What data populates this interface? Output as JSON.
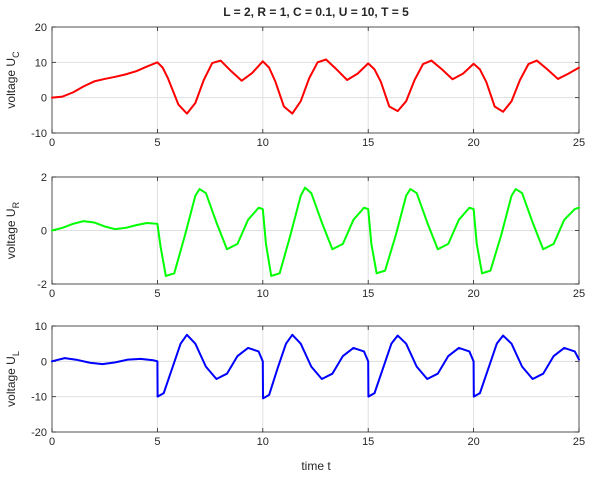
{
  "title": "L = 2, R = 1, C = 0.1, U = 10, T = 5",
  "xlabel": "time  t",
  "chart_data": [
    {
      "type": "line",
      "ylabel": "voltage  U",
      "ylabel_sub": "C",
      "color": "#ff0000",
      "xlim": [
        0,
        25
      ],
      "ylim": [
        -10,
        20
      ],
      "xticks": [
        "0",
        "5",
        "10",
        "15",
        "20",
        "25"
      ],
      "yticks": [
        "-10",
        "0",
        "10",
        "20"
      ],
      "grid": true,
      "x": [
        0,
        0.5,
        1,
        1.5,
        2,
        2.5,
        3,
        3.5,
        4,
        4.5,
        5,
        5.25,
        5.5,
        6,
        6.4,
        6.8,
        7.2,
        7.6,
        8,
        8.5,
        9,
        9.5,
        10,
        10.3,
        10.6,
        11,
        11.4,
        11.8,
        12.2,
        12.6,
        13,
        13.5,
        14,
        14.5,
        15,
        15.3,
        15.6,
        16,
        16.4,
        16.8,
        17.2,
        17.6,
        18,
        18.5,
        19,
        19.5,
        20,
        20.3,
        20.6,
        21,
        21.4,
        21.8,
        22.2,
        22.6,
        23,
        23.5,
        24,
        24.5,
        25
      ],
      "y": [
        0,
        0.3,
        1.5,
        3.2,
        4.6,
        5.3,
        5.9,
        6.6,
        7.5,
        8.8,
        10,
        8.5,
        5.5,
        -2,
        -4.5,
        -1.5,
        5,
        9.8,
        10.5,
        7.5,
        4.8,
        7,
        10.3,
        8.5,
        4.5,
        -2.5,
        -4.5,
        -1,
        5.5,
        10,
        10.8,
        8,
        5,
        6.8,
        9.7,
        8,
        4.5,
        -2.5,
        -3.8,
        -1,
        5,
        9.5,
        10.5,
        8,
        5.2,
        6.8,
        9.6,
        8,
        4.5,
        -2.5,
        -4,
        -1,
        5,
        9.5,
        10.5,
        8,
        5.3,
        6.8,
        8.5
      ]
    },
    {
      "type": "line",
      "ylabel": "voltage  U",
      "ylabel_sub": "R",
      "color": "#00ff00",
      "xlim": [
        0,
        25
      ],
      "ylim": [
        -2,
        2
      ],
      "xticks": [
        "0",
        "5",
        "10",
        "15",
        "20",
        "25"
      ],
      "yticks": [
        "-2",
        "0",
        "2"
      ],
      "grid": true,
      "x": [
        0,
        0.5,
        1,
        1.5,
        2,
        2.5,
        3,
        3.5,
        4,
        4.5,
        5,
        5.15,
        5.4,
        5.8,
        6.3,
        6.8,
        7,
        7.3,
        7.8,
        8.3,
        8.8,
        9.3,
        9.8,
        10,
        10.15,
        10.4,
        10.8,
        11.3,
        11.8,
        12,
        12.3,
        12.8,
        13.3,
        13.8,
        14.3,
        14.8,
        15,
        15.15,
        15.4,
        15.8,
        16.3,
        16.8,
        17,
        17.3,
        17.8,
        18.3,
        18.8,
        19.3,
        19.8,
        20,
        20.15,
        20.4,
        20.8,
        21.3,
        21.8,
        22,
        22.3,
        22.8,
        23.3,
        23.8,
        24.3,
        24.8,
        25
      ],
      "y": [
        0,
        0.1,
        0.25,
        0.35,
        0.3,
        0.15,
        0.05,
        0.1,
        0.2,
        0.28,
        0.25,
        -0.6,
        -1.7,
        -1.6,
        -0.2,
        1.3,
        1.55,
        1.4,
        0.3,
        -0.7,
        -0.5,
        0.4,
        0.85,
        0.8,
        -0.5,
        -1.7,
        -1.6,
        -0.2,
        1.3,
        1.6,
        1.4,
        0.3,
        -0.7,
        -0.5,
        0.4,
        0.85,
        0.8,
        -0.5,
        -1.6,
        -1.5,
        -0.2,
        1.3,
        1.55,
        1.4,
        0.3,
        -0.7,
        -0.5,
        0.4,
        0.85,
        0.8,
        -0.5,
        -1.6,
        -1.5,
        -0.2,
        1.3,
        1.55,
        1.4,
        0.3,
        -0.7,
        -0.5,
        0.4,
        0.8,
        0.85
      ]
    },
    {
      "type": "line",
      "ylabel": "voltage  U",
      "ylabel_sub": "L",
      "color": "#0000ff",
      "xlim": [
        0,
        25
      ],
      "ylim": [
        -20,
        10
      ],
      "xticks": [
        "0",
        "5",
        "10",
        "15",
        "20",
        "25"
      ],
      "yticks": [
        "-20",
        "-10",
        "0",
        "10"
      ],
      "grid": true,
      "x": [
        0,
        0.6,
        1.2,
        1.8,
        2.4,
        3,
        3.6,
        4.2,
        4.8,
        5,
        5.01,
        5.3,
        5.7,
        6.1,
        6.4,
        6.8,
        7.3,
        7.8,
        8.3,
        8.8,
        9.3,
        9.8,
        10,
        10.01,
        10.3,
        10.7,
        11.1,
        11.4,
        11.8,
        12.3,
        12.8,
        13.3,
        13.8,
        14.3,
        14.8,
        15,
        15.01,
        15.3,
        15.7,
        16.1,
        16.4,
        16.8,
        17.3,
        17.8,
        18.3,
        18.8,
        19.3,
        19.8,
        20,
        20.01,
        20.3,
        20.7,
        21.1,
        21.4,
        21.8,
        22.3,
        22.8,
        23.3,
        23.8,
        24.3,
        24.8,
        25
      ],
      "y": [
        0,
        0.9,
        0.4,
        -0.4,
        -0.8,
        -0.3,
        0.5,
        0.7,
        0.3,
        0,
        -10,
        -9,
        -2,
        5,
        7.5,
        5,
        -1.5,
        -5,
        -3.5,
        1.5,
        3.8,
        2.8,
        0,
        -10.5,
        -9.5,
        -2,
        5,
        7.5,
        5,
        -1.5,
        -5,
        -3.5,
        1.5,
        3.8,
        2.8,
        0,
        -10,
        -9,
        -2,
        5,
        7.3,
        5,
        -1.5,
        -5,
        -3.5,
        1.5,
        3.8,
        2.8,
        0,
        -10,
        -9,
        -2,
        5,
        7.3,
        5,
        -1.5,
        -5,
        -3.5,
        1.5,
        3.8,
        2.8,
        0.5
      ]
    }
  ]
}
